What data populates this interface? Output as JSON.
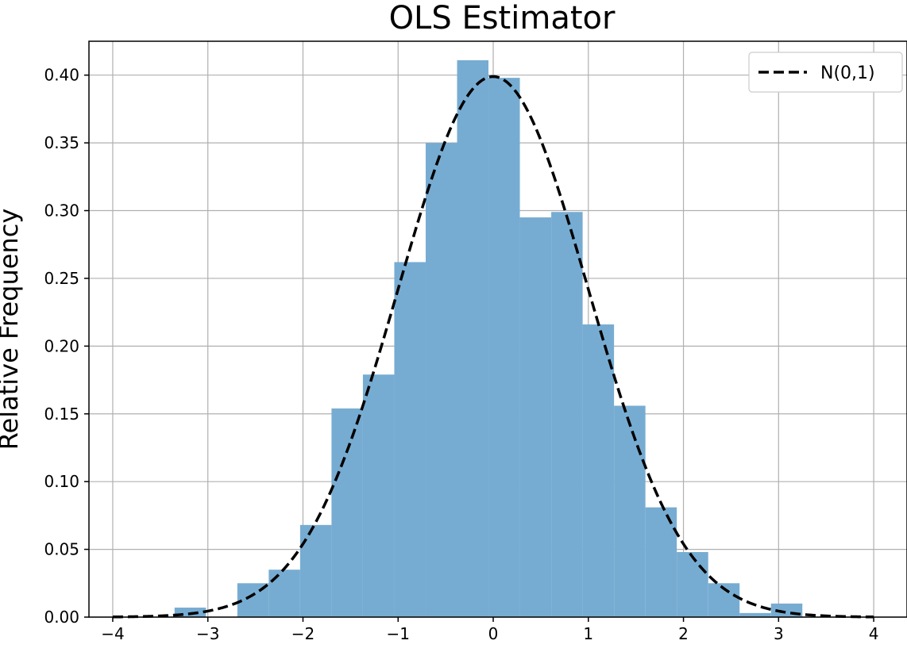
{
  "chart_data": {
    "type": "bar",
    "title": "OLS Estimator",
    "xlabel": "",
    "ylabel": "Relative Frequency",
    "xlim": [
      -4.25,
      4.35
    ],
    "ylim": [
      0,
      0.425
    ],
    "grid": true,
    "legend_position": "top-right",
    "x_ticks": [
      -4,
      -3,
      -2,
      -1,
      0,
      1,
      2,
      3,
      4
    ],
    "x_tick_labels": [
      "−4",
      "−3",
      "−2",
      "−1",
      "0",
      "1",
      "2",
      "3",
      "4"
    ],
    "y_ticks": [
      0,
      0.05,
      0.1,
      0.15,
      0.2,
      0.25,
      0.3,
      0.35,
      0.4
    ],
    "y_tick_labels": [
      "0.00",
      "0.05",
      "0.10",
      "0.15",
      "0.20",
      "0.25",
      "0.30",
      "0.35",
      "0.40"
    ],
    "histogram": {
      "bin_edges": [
        -3.35,
        -3.02,
        -2.69,
        -2.36,
        -2.03,
        -1.7,
        -1.37,
        -1.04,
        -0.71,
        -0.38,
        -0.05,
        0.28,
        0.61,
        0.94,
        1.27,
        1.6,
        1.93,
        2.26,
        2.59,
        2.92,
        3.25
      ],
      "values": [
        0.007,
        0.0,
        0.025,
        0.035,
        0.068,
        0.154,
        0.179,
        0.262,
        0.35,
        0.411,
        0.398,
        0.295,
        0.299,
        0.216,
        0.156,
        0.081,
        0.048,
        0.025,
        0.003,
        0.01
      ],
      "color": "#77acd2"
    },
    "series": [
      {
        "name": "N(0,1)",
        "style": "dashed",
        "color": "#000000",
        "x_range": [
          -4,
          4
        ],
        "function": "standard_normal_pdf"
      }
    ]
  }
}
